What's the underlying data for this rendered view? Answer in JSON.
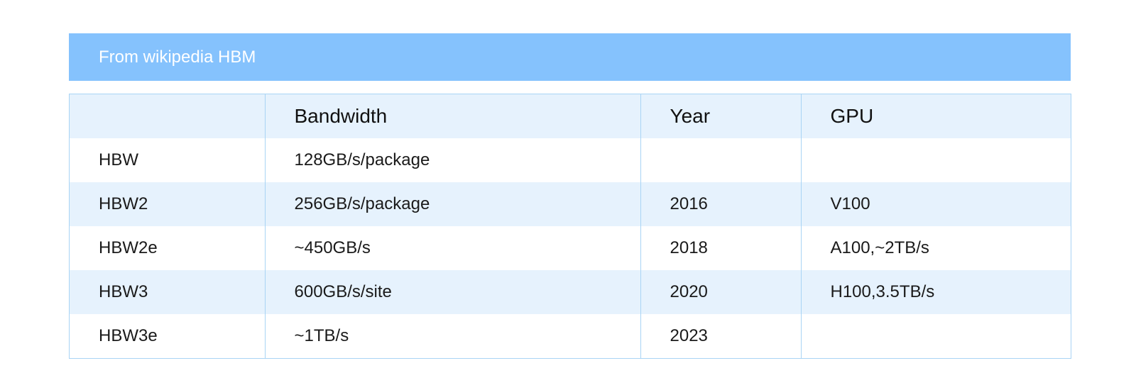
{
  "banner": {
    "title": "From wikipedia HBM"
  },
  "table": {
    "headers": [
      "",
      "Bandwidth",
      "Year",
      "GPU"
    ],
    "rows": [
      [
        "HBW",
        "128GB/s/package",
        "",
        ""
      ],
      [
        "HBW2",
        "256GB/s/package",
        "2016",
        "V100"
      ],
      [
        "HBW2e",
        "~450GB/s",
        "2018",
        "A100,~2TB/s"
      ],
      [
        "HBW3",
        "600GB/s/site",
        "2020",
        "H100,3.5TB/s"
      ],
      [
        "HBW3e",
        "~1TB/s",
        "2023",
        ""
      ]
    ]
  },
  "colors": {
    "banner_bg": "#85c2fd",
    "row_shade": "#e6f2fd",
    "border": "#a9d4f5"
  }
}
